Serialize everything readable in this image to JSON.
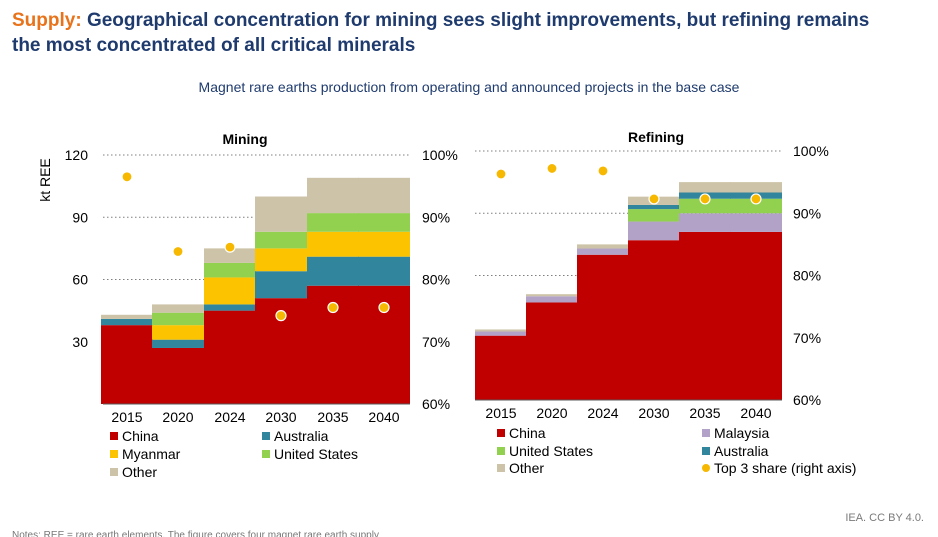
{
  "header": {
    "keyword": "Supply:",
    "headline_line1": "Geographical concentration for mining sees slight improvements, but refining remains",
    "headline_line2": "the most concentrated of all critical minerals"
  },
  "subtitle": "Magnet rare earths production from operating and announced projects in the base case",
  "credit": "IEA. CC BY 4.0.",
  "note": "Notes: REE = rare earth elements. The figure covers four magnet rare earth supply",
  "colors": {
    "China": "#c00000",
    "Malaysia": "#b3a2c7",
    "Myanmar": "#fcc300",
    "Australia": "#31859c",
    "United States": "#92d050",
    "Other": "#cdc3a8",
    "Top 3 share": "#f6b800"
  },
  "chart_data": [
    {
      "type": "bar",
      "stacked": true,
      "title": "Mining",
      "ylabel": "kt REE",
      "ylim": [
        0,
        120
      ],
      "yticks": [
        30,
        60,
        90,
        120
      ],
      "y2lim": [
        60,
        100
      ],
      "y2ticks": [
        "60%",
        "70%",
        "80%",
        "90%",
        "100%"
      ],
      "grid": "right-axis dotted",
      "legend_position": "bottom",
      "categories": [
        "2015",
        "2020",
        "2024",
        "2030",
        "2035",
        "2040"
      ],
      "series": [
        {
          "name": "China",
          "values": [
            38,
            27,
            45,
            51,
            57,
            57
          ]
        },
        {
          "name": "Australia",
          "values": [
            3,
            4,
            3,
            13,
            14,
            14
          ]
        },
        {
          "name": "Myanmar",
          "values": [
            0,
            7,
            13,
            11,
            12,
            12
          ]
        },
        {
          "name": "United States",
          "values": [
            0,
            6,
            7,
            8,
            9,
            9
          ]
        },
        {
          "name": "Other",
          "values": [
            2,
            4,
            7,
            17,
            17,
            17
          ]
        }
      ],
      "top3_share": {
        "name": "Top 3 share (right axis)",
        "values": [
          96.5,
          84.5,
          85.2,
          74.2,
          75.5,
          75.5
        ]
      },
      "legend": [
        "China",
        "Australia",
        "Myanmar",
        "United States",
        "Other"
      ]
    },
    {
      "type": "bar",
      "stacked": true,
      "title": "Refining",
      "ylim": [
        0,
        120
      ],
      "y2lim": [
        60,
        100
      ],
      "y2ticks": [
        "60%",
        "70%",
        "80%",
        "90%",
        "100%"
      ],
      "grid": "right-axis dotted",
      "legend_position": "bottom",
      "categories": [
        "2015",
        "2020",
        "2024",
        "2030",
        "2035",
        "2040"
      ],
      "series": [
        {
          "name": "China",
          "values": [
            31,
            47,
            70,
            77,
            81,
            81
          ]
        },
        {
          "name": "Malaysia",
          "values": [
            2,
            3,
            3,
            9,
            9,
            9
          ]
        },
        {
          "name": "United States",
          "values": [
            0,
            0,
            0,
            6,
            7,
            7
          ]
        },
        {
          "name": "Australia",
          "values": [
            0,
            0,
            0,
            2,
            3,
            3
          ]
        },
        {
          "name": "Other",
          "values": [
            1,
            1,
            2,
            4,
            5,
            5
          ]
        }
      ],
      "top3_share": {
        "name": "Top 3 share (right axis)",
        "values": [
          96.3,
          97.2,
          96.8,
          92.3,
          92.3,
          92.3
        ]
      },
      "legend": [
        "China",
        "Malaysia",
        "United States",
        "Australia",
        "Other",
        "Top 3 share (right axis)"
      ]
    }
  ]
}
